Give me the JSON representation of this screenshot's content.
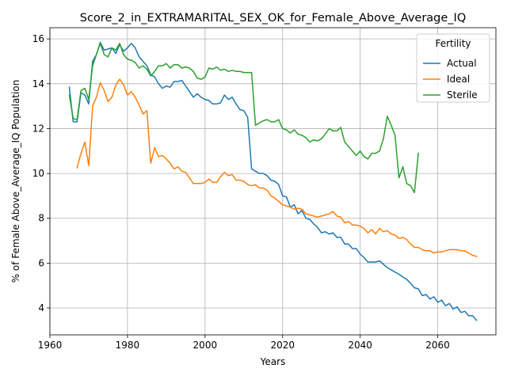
{
  "chart_data": {
    "type": "line",
    "title": "Score_2_in_EXTRAMARITAL_SEX_OK_for_Female_Above_Average_IQ",
    "xlabel": "Years",
    "ylabel": "% of Female Above_Average_IQ Population",
    "xlim": [
      1960,
      2075
    ],
    "ylim": [
      2.8,
      16.5
    ],
    "xticks": [
      1960,
      1980,
      2000,
      2020,
      2040,
      2060
    ],
    "yticks": [
      4,
      6,
      8,
      10,
      12,
      14,
      16
    ],
    "grid": true,
    "legend": {
      "title": "Fertility",
      "placement": "top-right"
    },
    "series": [
      {
        "name": "Actual",
        "color": "#1f77b4",
        "x": [
          1965,
          1966,
          1967,
          1968,
          1969,
          1970,
          1971,
          1972,
          1973,
          1974,
          1975,
          1976,
          1977,
          1978,
          1979,
          1980,
          1981,
          1982,
          1983,
          1984,
          1985,
          1986,
          1987,
          1988,
          1989,
          1990,
          1991,
          1992,
          1993,
          1994,
          1995,
          1996,
          1997,
          1998,
          1999,
          2000,
          2001,
          2002,
          2003,
          2004,
          2005,
          2006,
          2007,
          2008,
          2009,
          2010,
          2011,
          2012,
          2013,
          2014,
          2015,
          2016,
          2017,
          2018,
          2019,
          2020,
          2021,
          2022,
          2023,
          2024,
          2025,
          2026,
          2027,
          2028,
          2029,
          2030,
          2031,
          2032,
          2033,
          2034,
          2035,
          2036,
          2037,
          2038,
          2039,
          2040,
          2041,
          2042,
          2043,
          2044,
          2045,
          2046,
          2047,
          2048,
          2049,
          2050,
          2051,
          2052,
          2053,
          2054,
          2055,
          2056,
          2057,
          2058,
          2059,
          2060,
          2061,
          2062,
          2063,
          2064,
          2065,
          2066,
          2067,
          2068,
          2069,
          2070
        ],
        "y": [
          13.85,
          12.3,
          12.3,
          13.6,
          13.5,
          13.1,
          15.0,
          15.3,
          15.85,
          15.5,
          15.55,
          15.6,
          15.35,
          15.75,
          15.45,
          15.6,
          15.8,
          15.6,
          15.2,
          15.0,
          14.8,
          14.4,
          14.3,
          14.0,
          13.8,
          13.9,
          13.85,
          14.1,
          14.1,
          14.15,
          13.9,
          13.65,
          13.4,
          13.55,
          13.4,
          13.3,
          13.25,
          13.1,
          13.1,
          13.15,
          13.5,
          13.3,
          13.4,
          13.1,
          12.85,
          12.8,
          12.5,
          10.2,
          10.1,
          10.0,
          10.0,
          9.9,
          9.7,
          9.65,
          9.5,
          9.0,
          8.95,
          8.5,
          8.6,
          8.2,
          8.35,
          8.0,
          7.95,
          7.75,
          7.6,
          7.35,
          7.4,
          7.3,
          7.35,
          7.15,
          7.15,
          6.85,
          6.85,
          6.65,
          6.65,
          6.4,
          6.25,
          6.05,
          6.05,
          6.05,
          6.1,
          5.95,
          5.8,
          5.7,
          5.6,
          5.5,
          5.38,
          5.28,
          5.1,
          4.9,
          4.85,
          4.55,
          4.6,
          4.4,
          4.5,
          4.25,
          4.35,
          4.1,
          4.2,
          3.95,
          4.05,
          3.8,
          3.85,
          3.65,
          3.65,
          3.45
        ]
      },
      {
        "name": "Ideal",
        "color": "#ff7f0e",
        "x": [
          1967,
          1968,
          1969,
          1970,
          1971,
          1972,
          1973,
          1974,
          1975,
          1976,
          1977,
          1978,
          1979,
          1980,
          1981,
          1982,
          1983,
          1984,
          1985,
          1986,
          1987,
          1988,
          1989,
          1990,
          1991,
          1992,
          1993,
          1994,
          1995,
          1996,
          1997,
          1998,
          1999,
          2000,
          2001,
          2002,
          2003,
          2004,
          2005,
          2006,
          2007,
          2008,
          2009,
          2010,
          2011,
          2012,
          2013,
          2014,
          2015,
          2016,
          2017,
          2018,
          2019,
          2020,
          2021,
          2022,
          2023,
          2024,
          2025,
          2026,
          2027,
          2028,
          2029,
          2030,
          2031,
          2032,
          2033,
          2034,
          2035,
          2036,
          2037,
          2038,
          2039,
          2040,
          2041,
          2042,
          2043,
          2044,
          2045,
          2046,
          2047,
          2048,
          2049,
          2050,
          2051,
          2052,
          2053,
          2054,
          2055,
          2056,
          2057,
          2058,
          2059,
          2060,
          2061,
          2062,
          2063,
          2064,
          2065,
          2066,
          2067,
          2068,
          2069,
          2070
        ],
        "y": [
          10.25,
          10.9,
          11.4,
          10.35,
          13.0,
          13.4,
          14.05,
          13.7,
          13.2,
          13.4,
          13.95,
          14.2,
          13.95,
          13.5,
          13.65,
          13.4,
          13.05,
          12.65,
          12.8,
          10.45,
          11.15,
          10.75,
          10.8,
          10.65,
          10.45,
          10.2,
          10.3,
          10.1,
          10.05,
          9.8,
          9.55,
          9.55,
          9.55,
          9.6,
          9.75,
          9.6,
          9.6,
          9.85,
          10.05,
          9.9,
          9.95,
          9.7,
          9.7,
          9.65,
          9.5,
          9.45,
          9.5,
          9.35,
          9.35,
          9.25,
          9.0,
          8.9,
          8.75,
          8.6,
          8.55,
          8.5,
          8.4,
          8.45,
          8.4,
          8.2,
          8.15,
          8.1,
          8.05,
          8.1,
          8.15,
          8.2,
          8.3,
          8.1,
          8.05,
          7.8,
          7.85,
          7.7,
          7.7,
          7.65,
          7.55,
          7.35,
          7.5,
          7.3,
          7.55,
          7.4,
          7.45,
          7.3,
          7.25,
          7.1,
          7.15,
          7.05,
          6.85,
          6.7,
          6.7,
          6.6,
          6.55,
          6.55,
          6.45,
          6.5,
          6.5,
          6.55,
          6.6,
          6.6,
          6.6,
          6.55,
          6.55,
          6.45,
          6.35,
          6.3
        ]
      },
      {
        "name": "Sterile",
        "color": "#2ca02c",
        "x": [
          1965,
          1966,
          1967,
          1968,
          1969,
          1970,
          1971,
          1972,
          1973,
          1974,
          1975,
          1976,
          1977,
          1978,
          1979,
          1980,
          1981,
          1982,
          1983,
          1984,
          1985,
          1986,
          1987,
          1988,
          1989,
          1990,
          1991,
          1992,
          1993,
          1994,
          1995,
          1996,
          1997,
          1998,
          1999,
          2000,
          2001,
          2002,
          2003,
          2004,
          2005,
          2006,
          2007,
          2008,
          2009,
          2010,
          2011,
          2012,
          2013,
          2014,
          2015,
          2016,
          2017,
          2018,
          2019,
          2020,
          2021,
          2022,
          2023,
          2024,
          2025,
          2026,
          2027,
          2028,
          2029,
          2030,
          2031,
          2032,
          2033,
          2034,
          2035,
          2036,
          2037,
          2038,
          2039,
          2040,
          2041,
          2042,
          2043,
          2044,
          2045,
          2046,
          2047,
          2048,
          2049,
          2050,
          2051,
          2052,
          2053,
          2054,
          2055
        ],
        "y": [
          13.5,
          12.45,
          12.4,
          13.7,
          13.8,
          13.3,
          14.8,
          15.3,
          15.8,
          15.3,
          15.2,
          15.6,
          15.5,
          15.8,
          15.3,
          15.1,
          15.05,
          14.95,
          14.7,
          14.8,
          14.65,
          14.35,
          14.55,
          14.8,
          14.8,
          14.9,
          14.7,
          14.85,
          14.85,
          14.7,
          14.75,
          14.7,
          14.55,
          14.25,
          14.2,
          14.3,
          14.7,
          14.65,
          14.75,
          14.6,
          14.65,
          14.55,
          14.6,
          14.55,
          14.55,
          14.5,
          14.5,
          14.5,
          12.15,
          12.25,
          12.35,
          12.4,
          12.3,
          12.3,
          12.4,
          12.0,
          11.95,
          11.8,
          11.95,
          11.75,
          11.7,
          11.6,
          11.4,
          11.5,
          11.45,
          11.55,
          11.75,
          12.0,
          11.9,
          11.9,
          12.05,
          11.4,
          11.2,
          11.0,
          10.8,
          11.0,
          10.75,
          10.65,
          10.9,
          10.9,
          11.0,
          11.55,
          12.55,
          12.15,
          11.7,
          9.8,
          10.3,
          9.55,
          9.45,
          9.15,
          10.9
        ]
      }
    ]
  }
}
